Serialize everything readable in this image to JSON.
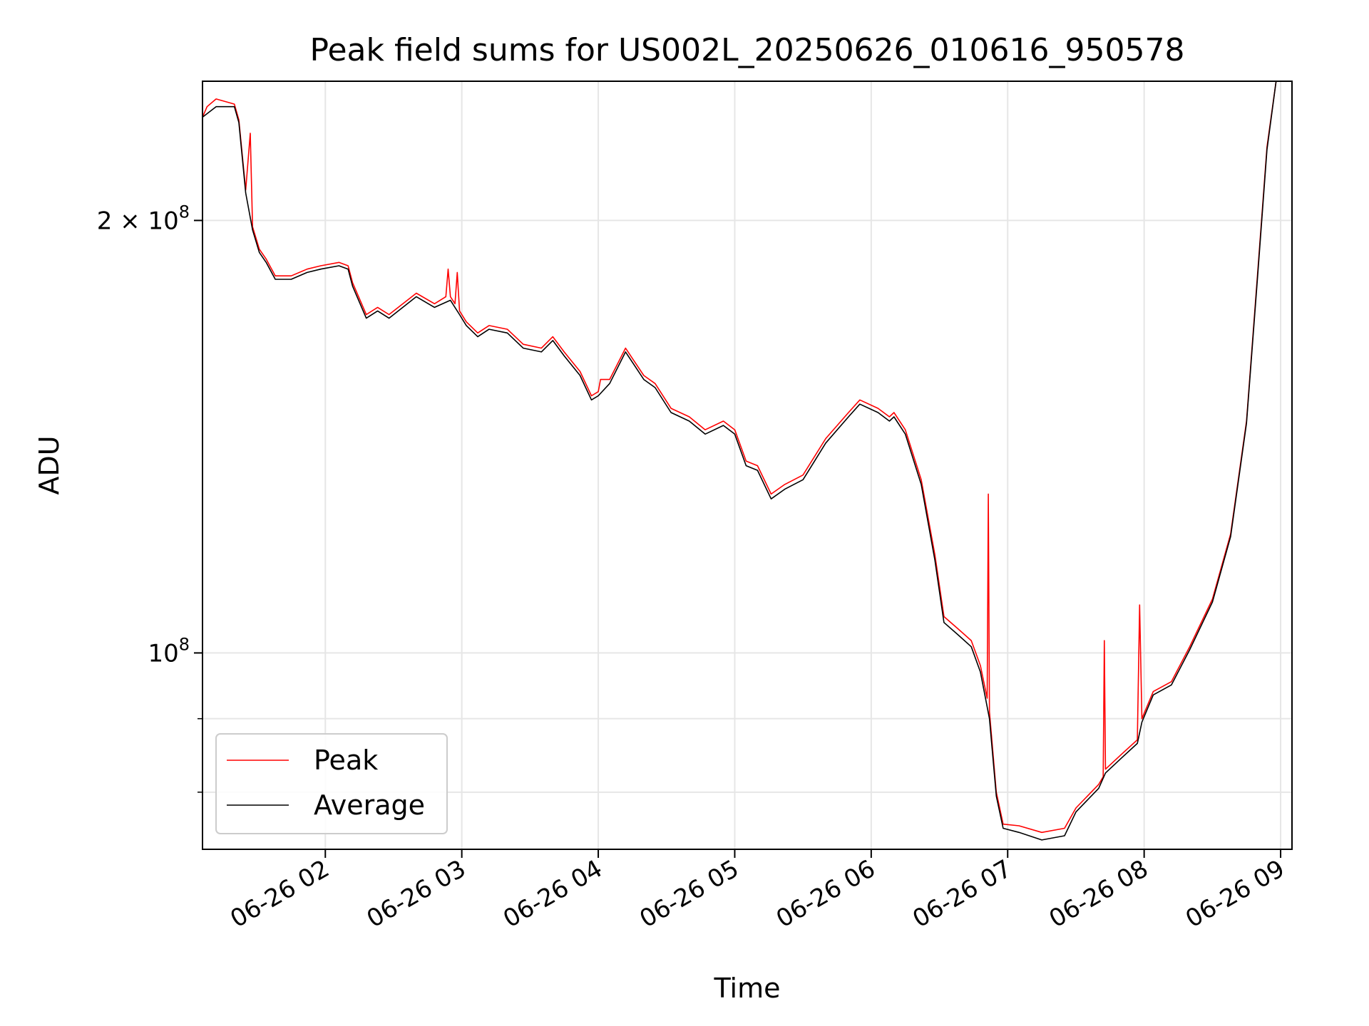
{
  "chart_data": {
    "type": "line",
    "title": "Peak field sums for US002L_20250626_010616_950578",
    "xlabel": "Time",
    "ylabel": "ADU",
    "yscale": "log",
    "grid": true,
    "legend_position": "lower-left",
    "xlim": [
      "2025-06-26 01:06",
      "2025-06-26 09:05"
    ],
    "ylim": [
      73000000,
      250000000
    ],
    "x_ticks": [
      {
        "t": "2025-06-26 02:00",
        "label": "06-26 02"
      },
      {
        "t": "2025-06-26 03:00",
        "label": "06-26 03"
      },
      {
        "t": "2025-06-26 04:00",
        "label": "06-26 04"
      },
      {
        "t": "2025-06-26 05:00",
        "label": "06-26 05"
      },
      {
        "t": "2025-06-26 06:00",
        "label": "06-26 06"
      },
      {
        "t": "2025-06-26 07:00",
        "label": "06-26 07"
      },
      {
        "t": "2025-06-26 08:00",
        "label": "06-26 08"
      },
      {
        "t": "2025-06-26 09:00",
        "label": "06-26 09"
      }
    ],
    "y_major_ticks": [
      {
        "v": 100000000,
        "label_base": "10",
        "label_exp": "8"
      },
      {
        "v": 200000000,
        "label_base": "2 × 10",
        "label_exp": "8"
      }
    ],
    "y_minor_ticks": [
      80000000,
      90000000
    ],
    "series": [
      {
        "name": "Peak",
        "color": "#ff0000",
        "points": [
          [
            "2025-06-26 01:06",
            236000000
          ],
          [
            "2025-06-26 01:08",
            240000000
          ],
          [
            "2025-06-26 01:12",
            243000000
          ],
          [
            "2025-06-26 01:20",
            241000000
          ],
          [
            "2025-06-26 01:22",
            235000000
          ],
          [
            "2025-06-26 01:25",
            210000000
          ],
          [
            "2025-06-26 01:27",
            230000000
          ],
          [
            "2025-06-26 01:28",
            198000000
          ],
          [
            "2025-06-26 01:31",
            191000000
          ],
          [
            "2025-06-26 01:34",
            188000000
          ],
          [
            "2025-06-26 01:38",
            183000000
          ],
          [
            "2025-06-26 01:45",
            183000000
          ],
          [
            "2025-06-26 01:52",
            185000000
          ],
          [
            "2025-06-26 01:58",
            186000000
          ],
          [
            "2025-06-26 02:06",
            187000000
          ],
          [
            "2025-06-26 02:10",
            186000000
          ],
          [
            "2025-06-26 02:12",
            181000000
          ],
          [
            "2025-06-26 02:18",
            172000000
          ],
          [
            "2025-06-26 02:23",
            174000000
          ],
          [
            "2025-06-26 02:28",
            172000000
          ],
          [
            "2025-06-26 02:40",
            178000000
          ],
          [
            "2025-06-26 02:48",
            175000000
          ],
          [
            "2025-06-26 02:53",
            177000000
          ],
          [
            "2025-06-26 02:54",
            185000000
          ],
          [
            "2025-06-26 02:55",
            177000000
          ],
          [
            "2025-06-26 02:57",
            175000000
          ],
          [
            "2025-06-26 02:58",
            184000000
          ],
          [
            "2025-06-26 02:59",
            173000000
          ],
          [
            "2025-06-26 03:02",
            170000000
          ],
          [
            "2025-06-26 03:07",
            167000000
          ],
          [
            "2025-06-26 03:12",
            169000000
          ],
          [
            "2025-06-26 03:20",
            168000000
          ],
          [
            "2025-06-26 03:27",
            164000000
          ],
          [
            "2025-06-26 03:35",
            163000000
          ],
          [
            "2025-06-26 03:40",
            166000000
          ],
          [
            "2025-06-26 03:45",
            162000000
          ],
          [
            "2025-06-26 03:52",
            157000000
          ],
          [
            "2025-06-26 03:57",
            151000000
          ],
          [
            "2025-06-26 04:00",
            152000000
          ],
          [
            "2025-06-26 04:01",
            155000000
          ],
          [
            "2025-06-26 04:05",
            155000000
          ],
          [
            "2025-06-26 04:12",
            163000000
          ],
          [
            "2025-06-26 04:20",
            156000000
          ],
          [
            "2025-06-26 04:25",
            154000000
          ],
          [
            "2025-06-26 04:32",
            148000000
          ],
          [
            "2025-06-26 04:40",
            146000000
          ],
          [
            "2025-06-26 04:47",
            143000000
          ],
          [
            "2025-06-26 04:55",
            145000000
          ],
          [
            "2025-06-26 05:00",
            143000000
          ],
          [
            "2025-06-26 05:05",
            136000000
          ],
          [
            "2025-06-26 05:10",
            135000000
          ],
          [
            "2025-06-26 05:16",
            129000000
          ],
          [
            "2025-06-26 05:22",
            131000000
          ],
          [
            "2025-06-26 05:30",
            133000000
          ],
          [
            "2025-06-26 05:40",
            141000000
          ],
          [
            "2025-06-26 05:50",
            147000000
          ],
          [
            "2025-06-26 05:55",
            150000000
          ],
          [
            "2025-06-26 06:03",
            148000000
          ],
          [
            "2025-06-26 06:08",
            146000000
          ],
          [
            "2025-06-26 06:10",
            147000000
          ],
          [
            "2025-06-26 06:15",
            143000000
          ],
          [
            "2025-06-26 06:22",
            132000000
          ],
          [
            "2025-06-26 06:28",
            117000000
          ],
          [
            "2025-06-26 06:32",
            106000000
          ],
          [
            "2025-06-26 06:38",
            104000000
          ],
          [
            "2025-06-26 06:44",
            102000000
          ],
          [
            "2025-06-26 06:48",
            98000000
          ],
          [
            "2025-06-26 06:51",
            93000000
          ],
          [
            "2025-06-26 06:51:30",
            129000000
          ],
          [
            "2025-06-26 06:52",
            91000000
          ],
          [
            "2025-06-26 06:55",
            80000000
          ],
          [
            "2025-06-26 06:58",
            76000000
          ],
          [
            "2025-06-26 07:05",
            75800000
          ],
          [
            "2025-06-26 07:15",
            75000000
          ],
          [
            "2025-06-26 07:25",
            75500000
          ],
          [
            "2025-06-26 07:30",
            78000000
          ],
          [
            "2025-06-26 07:40",
            81000000
          ],
          [
            "2025-06-26 07:42",
            82000000
          ],
          [
            "2025-06-26 07:42:30",
            102000000
          ],
          [
            "2025-06-26 07:43",
            83000000
          ],
          [
            "2025-06-26 07:50",
            85000000
          ],
          [
            "2025-06-26 07:57",
            87000000
          ],
          [
            "2025-06-26 07:58",
            108000000
          ],
          [
            "2025-06-26 07:59",
            90000000
          ],
          [
            "2025-06-26 08:04",
            94000000
          ],
          [
            "2025-06-26 08:12",
            95500000
          ],
          [
            "2025-06-26 08:20",
            101000000
          ],
          [
            "2025-06-26 08:30",
            109000000
          ],
          [
            "2025-06-26 08:38",
            121000000
          ],
          [
            "2025-06-26 08:45",
            145000000
          ],
          [
            "2025-06-26 08:50",
            185000000
          ],
          [
            "2025-06-26 08:54",
            225000000
          ],
          [
            "2025-06-26 08:58",
            250000000
          ],
          [
            "2025-06-26 09:05",
            251000000
          ]
        ]
      },
      {
        "name": "Average",
        "color": "#000000",
        "points": [
          [
            "2025-06-26 01:06",
            236000000
          ],
          [
            "2025-06-26 01:12",
            240000000
          ],
          [
            "2025-06-26 01:20",
            240000000
          ],
          [
            "2025-06-26 01:22",
            234000000
          ],
          [
            "2025-06-26 01:25",
            209000000
          ],
          [
            "2025-06-26 01:28",
            197000000
          ],
          [
            "2025-06-26 01:31",
            190000000
          ],
          [
            "2025-06-26 01:34",
            187000000
          ],
          [
            "2025-06-26 01:38",
            182000000
          ],
          [
            "2025-06-26 01:45",
            182000000
          ],
          [
            "2025-06-26 01:52",
            184000000
          ],
          [
            "2025-06-26 01:58",
            185000000
          ],
          [
            "2025-06-26 02:06",
            186000000
          ],
          [
            "2025-06-26 02:10",
            185000000
          ],
          [
            "2025-06-26 02:12",
            180000000
          ],
          [
            "2025-06-26 02:18",
            171000000
          ],
          [
            "2025-06-26 02:23",
            173000000
          ],
          [
            "2025-06-26 02:28",
            171000000
          ],
          [
            "2025-06-26 02:40",
            177000000
          ],
          [
            "2025-06-26 02:48",
            174000000
          ],
          [
            "2025-06-26 02:55",
            176000000
          ],
          [
            "2025-06-26 02:59",
            172000000
          ],
          [
            "2025-06-26 03:02",
            169000000
          ],
          [
            "2025-06-26 03:07",
            166000000
          ],
          [
            "2025-06-26 03:12",
            168000000
          ],
          [
            "2025-06-26 03:20",
            167000000
          ],
          [
            "2025-06-26 03:27",
            163000000
          ],
          [
            "2025-06-26 03:35",
            162000000
          ],
          [
            "2025-06-26 03:40",
            165000000
          ],
          [
            "2025-06-26 03:45",
            161000000
          ],
          [
            "2025-06-26 03:52",
            156000000
          ],
          [
            "2025-06-26 03:57",
            150000000
          ],
          [
            "2025-06-26 04:00",
            151000000
          ],
          [
            "2025-06-26 04:05",
            154000000
          ],
          [
            "2025-06-26 04:12",
            162000000
          ],
          [
            "2025-06-26 04:20",
            155000000
          ],
          [
            "2025-06-26 04:25",
            153000000
          ],
          [
            "2025-06-26 04:32",
            147000000
          ],
          [
            "2025-06-26 04:40",
            145000000
          ],
          [
            "2025-06-26 04:47",
            142000000
          ],
          [
            "2025-06-26 04:55",
            144000000
          ],
          [
            "2025-06-26 05:00",
            142000000
          ],
          [
            "2025-06-26 05:05",
            135000000
          ],
          [
            "2025-06-26 05:10",
            134000000
          ],
          [
            "2025-06-26 05:16",
            128000000
          ],
          [
            "2025-06-26 05:22",
            130000000
          ],
          [
            "2025-06-26 05:30",
            132000000
          ],
          [
            "2025-06-26 05:40",
            140000000
          ],
          [
            "2025-06-26 05:50",
            146000000
          ],
          [
            "2025-06-26 05:55",
            149000000
          ],
          [
            "2025-06-26 06:03",
            147000000
          ],
          [
            "2025-06-26 06:08",
            145000000
          ],
          [
            "2025-06-26 06:10",
            146000000
          ],
          [
            "2025-06-26 06:15",
            142000000
          ],
          [
            "2025-06-26 06:22",
            131000000
          ],
          [
            "2025-06-26 06:28",
            116000000
          ],
          [
            "2025-06-26 06:32",
            105000000
          ],
          [
            "2025-06-26 06:38",
            103000000
          ],
          [
            "2025-06-26 06:44",
            101000000
          ],
          [
            "2025-06-26 06:48",
            97000000
          ],
          [
            "2025-06-26 06:52",
            90000000
          ],
          [
            "2025-06-26 06:55",
            79500000
          ],
          [
            "2025-06-26 06:58",
            75500000
          ],
          [
            "2025-06-26 07:05",
            75000000
          ],
          [
            "2025-06-26 07:15",
            74100000
          ],
          [
            "2025-06-26 07:25",
            74600000
          ],
          [
            "2025-06-26 07:30",
            77500000
          ],
          [
            "2025-06-26 07:40",
            80500000
          ],
          [
            "2025-06-26 07:43",
            82500000
          ],
          [
            "2025-06-26 07:50",
            84500000
          ],
          [
            "2025-06-26 07:57",
            86500000
          ],
          [
            "2025-06-26 07:59",
            89500000
          ],
          [
            "2025-06-26 08:04",
            93500000
          ],
          [
            "2025-06-26 08:12",
            95000000
          ],
          [
            "2025-06-26 08:20",
            100500000
          ],
          [
            "2025-06-26 08:30",
            108500000
          ],
          [
            "2025-06-26 08:38",
            120500000
          ],
          [
            "2025-06-26 08:45",
            144500000
          ],
          [
            "2025-06-26 08:50",
            184000000
          ],
          [
            "2025-06-26 08:54",
            224000000
          ],
          [
            "2025-06-26 08:58",
            250000000
          ],
          [
            "2025-06-26 09:05",
            251000000
          ]
        ]
      }
    ]
  }
}
